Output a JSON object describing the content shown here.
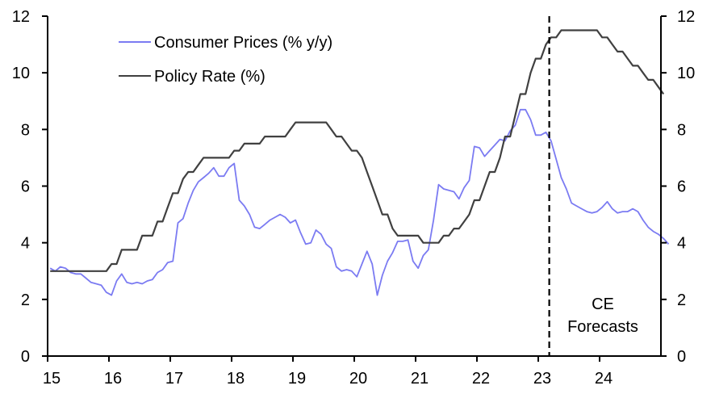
{
  "chart_data": {
    "type": "line",
    "title": "",
    "xlabel": "",
    "ylabel_left": "",
    "ylabel_right": "",
    "x_start": "2015-01",
    "frequency": "monthly",
    "x_ticks": [
      "15",
      "16",
      "17",
      "18",
      "19",
      "20",
      "21",
      "22",
      "23",
      "24"
    ],
    "xlim": [
      2015.0,
      2025.0
    ],
    "ylim_left": [
      0,
      12
    ],
    "ylim_right": [
      0,
      12
    ],
    "y_ticks_left": [
      "0",
      "2",
      "4",
      "6",
      "8",
      "10",
      "12"
    ],
    "y_ticks_right": [
      "0",
      "2",
      "4",
      "6",
      "8",
      "10",
      "12"
    ],
    "grid": false,
    "legend_position": "top-left",
    "series": [
      {
        "name": "Consumer Prices (% y/y)",
        "color": "#7b7bf2",
        "values": [
          3.1,
          3.0,
          3.15,
          3.1,
          2.95,
          2.9,
          2.9,
          2.75,
          2.6,
          2.55,
          2.5,
          2.25,
          2.15,
          2.65,
          2.9,
          2.6,
          2.55,
          2.6,
          2.55,
          2.65,
          2.7,
          2.95,
          3.05,
          3.3,
          3.35,
          4.7,
          4.85,
          5.4,
          5.85,
          6.15,
          6.3,
          6.45,
          6.65,
          6.35,
          6.35,
          6.65,
          6.8,
          5.5,
          5.3,
          5.0,
          4.55,
          4.5,
          4.65,
          4.8,
          4.9,
          5.0,
          4.9,
          4.7,
          4.8,
          4.35,
          3.95,
          4.0,
          4.45,
          4.3,
          3.95,
          3.8,
          3.15,
          3.0,
          3.05,
          3.0,
          2.8,
          3.25,
          3.7,
          3.25,
          2.15,
          2.85,
          3.35,
          3.65,
          4.05,
          4.05,
          4.1,
          3.35,
          3.1,
          3.55,
          3.75,
          4.8,
          6.05,
          5.9,
          5.85,
          5.8,
          5.55,
          5.95,
          6.2,
          7.4,
          7.35,
          7.05,
          7.25,
          7.45,
          7.65,
          7.6,
          7.95,
          8.15,
          8.7,
          8.7,
          8.35,
          7.8,
          7.8,
          7.9,
          7.6,
          6.95,
          6.3,
          5.9,
          5.4,
          5.3,
          5.2,
          5.1,
          5.05,
          5.1,
          5.25,
          5.45,
          5.2,
          5.05,
          5.1,
          5.1,
          5.2,
          5.1,
          4.8,
          4.55,
          4.4,
          4.3,
          4.15,
          3.95
        ],
        "forecast_from_index": 98
      },
      {
        "name": "Policy Rate (%)",
        "color": "#404040",
        "values": [
          3.0,
          3.0,
          3.0,
          3.0,
          3.0,
          3.0,
          3.0,
          3.0,
          3.0,
          3.0,
          3.0,
          3.0,
          3.25,
          3.25,
          3.75,
          3.75,
          3.75,
          3.75,
          4.25,
          4.25,
          4.25,
          4.75,
          4.75,
          5.25,
          5.75,
          5.75,
          6.25,
          6.5,
          6.5,
          6.75,
          7.0,
          7.0,
          7.0,
          7.0,
          7.0,
          7.0,
          7.25,
          7.25,
          7.5,
          7.5,
          7.5,
          7.5,
          7.75,
          7.75,
          7.75,
          7.75,
          7.75,
          8.0,
          8.25,
          8.25,
          8.25,
          8.25,
          8.25,
          8.25,
          8.25,
          8.0,
          7.75,
          7.75,
          7.5,
          7.25,
          7.25,
          7.0,
          6.5,
          6.0,
          5.5,
          5.0,
          5.0,
          4.5,
          4.25,
          4.25,
          4.25,
          4.25,
          4.25,
          4.0,
          4.0,
          4.0,
          4.0,
          4.25,
          4.25,
          4.5,
          4.5,
          4.75,
          5.0,
          5.5,
          5.5,
          6.0,
          6.5,
          6.5,
          7.0,
          7.75,
          7.75,
          8.5,
          9.25,
          9.25,
          10.0,
          10.5,
          10.5,
          11.0,
          11.25,
          11.25,
          11.5,
          11.5,
          11.5,
          11.5,
          11.5,
          11.5,
          11.5,
          11.5,
          11.25,
          11.25,
          11.0,
          10.75,
          10.75,
          10.5,
          10.25,
          10.25,
          10.0,
          9.75,
          9.75,
          9.5,
          9.25
        ],
        "forecast_from_index": 98
      }
    ],
    "forecast_marker": {
      "x": "2023-03",
      "style": "dashed"
    },
    "annotations": [
      {
        "text_lines": [
          "CE",
          "Forecasts"
        ],
        "position": "bottom-right-region"
      }
    ]
  }
}
